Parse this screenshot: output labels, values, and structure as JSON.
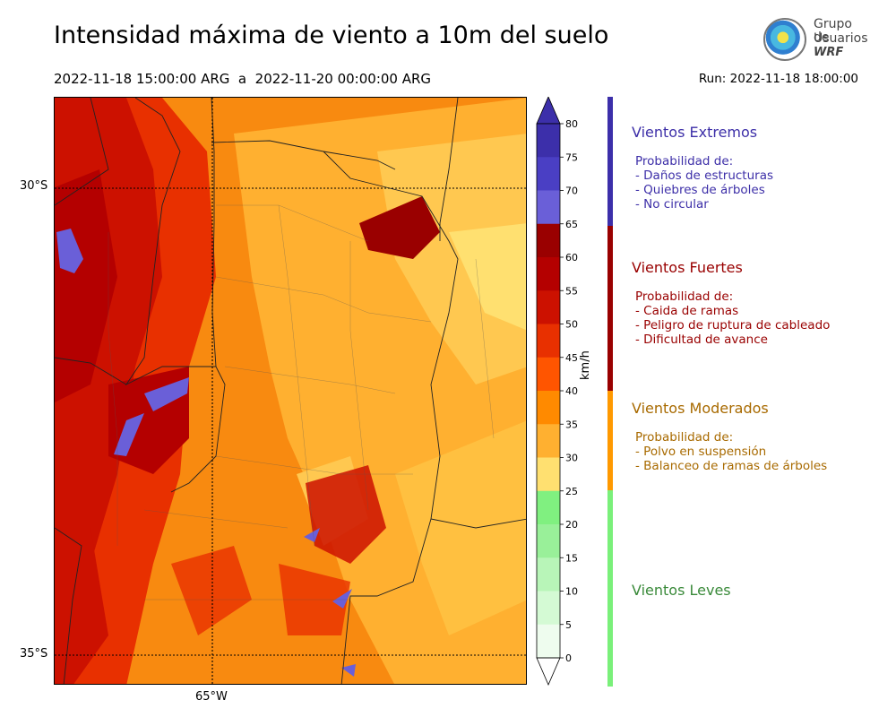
{
  "title": "Intensidad máxima de viento a 10m del suelo",
  "period": "2022-11-18 15:00:00 ARG  a  2022-11-20 00:00:00 ARG",
  "run": "Run: 2022-11-18 18:00:00",
  "logo": {
    "line1": "Grupo de",
    "line2": "Usuarios",
    "line3": "WRF"
  },
  "map": {
    "lat_labels": [
      "30°S",
      "35°S"
    ],
    "lon_labels": [
      "65°W"
    ]
  },
  "colorbar": {
    "unit": "km/h",
    "ticks": [
      "80",
      "75",
      "70",
      "65",
      "60",
      "55",
      "50",
      "45",
      "40",
      "35",
      "30",
      "25",
      "20",
      "15",
      "10",
      "5",
      "0"
    ],
    "colors": [
      "#3c2faa",
      "#4a3fc4",
      "#6a5fd8",
      "#9a0000",
      "#b40000",
      "#cc1100",
      "#e83000",
      "#ff5500",
      "#ff8a00",
      "#ffb030",
      "#ffe070",
      "#80f080",
      "#99f099",
      "#b8f5b8",
      "#d4fad4",
      "#eefcee"
    ]
  },
  "categories": [
    {
      "title": "Vientos Extremos",
      "color": "#3d2fa8",
      "lines": [
        "Probabilidad de:",
        "- Daños de estructuras",
        "- Quiebres de árboles",
        "- No circular"
      ]
    },
    {
      "title": "Vientos Fuertes",
      "color": "#990000",
      "lines": [
        "Probabilidad de:",
        "- Caida de ramas",
        "- Peligro de ruptura de cableado",
        "- Dificultad de avance"
      ]
    },
    {
      "title": "Vientos Moderados",
      "color": "#a86a00",
      "lines": [
        "Probabilidad de:",
        "- Polvo en suspensión",
        "- Balanceo de ramas de árboles"
      ]
    },
    {
      "title": "Vientos Leves",
      "color": "#3a8a3a",
      "lines": []
    }
  ]
}
